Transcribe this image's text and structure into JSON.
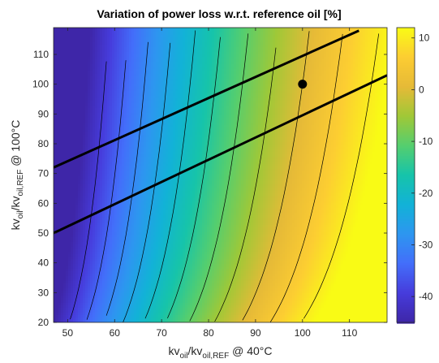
{
  "chart_data": {
    "type": "heatmap",
    "title": "Variation of power loss w.r.t. reference oil [%]",
    "xlabel": {
      "prefix": "kv",
      "sub1": "oil",
      "mid": "/kv",
      "sub2": "oil,REF",
      "suffix": " @ 40°C"
    },
    "ylabel": {
      "prefix": "kv",
      "sub1": "oil",
      "mid": "/kv",
      "sub2": "oil,REF",
      "suffix": " @ 100°C"
    },
    "xlim": [
      47,
      118
    ],
    "ylim": [
      20,
      119
    ],
    "xticks": [
      50,
      60,
      70,
      80,
      90,
      100,
      110
    ],
    "yticks": [
      20,
      30,
      40,
      50,
      60,
      70,
      80,
      90,
      100,
      110
    ],
    "colorbar": {
      "clim": [
        -45,
        12
      ],
      "ticks": [
        -40,
        -30,
        -20,
        -10,
        0,
        10
      ],
      "colormap": "parula"
    },
    "contour_levels": [
      -40,
      -35,
      -30,
      -25,
      -20,
      -15,
      -10,
      -5,
      0,
      5,
      10
    ],
    "field_samples": [
      {
        "x": 100,
        "y": 100,
        "value": 0
      },
      {
        "x": 47,
        "y": 20,
        "value": -45
      },
      {
        "x": 118,
        "y": 119,
        "value": 11
      }
    ],
    "lines": [
      {
        "name": "",
        "x": [
          47,
          112
        ],
        "y": [
          72,
          118
        ]
      },
      {
        "name": "",
        "x": [
          47,
          118
        ],
        "y": [
          50,
          103
        ]
      }
    ],
    "points": [
      {
        "name": "",
        "x": 100,
        "y": 100
      }
    ]
  }
}
